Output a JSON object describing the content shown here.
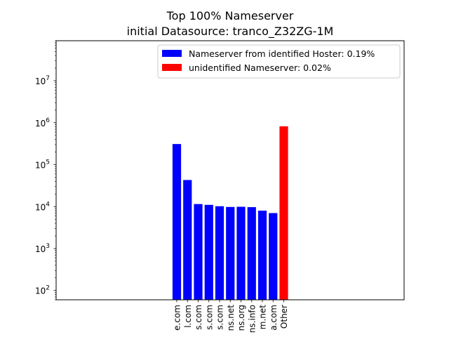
{
  "chart_data": {
    "type": "bar",
    "title": "Top 100% Nameserver",
    "subtitle": "initial Datasource: tranco_Z32ZG-1M",
    "xlabel": "",
    "ylabel": "",
    "yscale": "log",
    "ylim": [
      60,
      90000000
    ],
    "yticks": [
      {
        "value": 100,
        "label": "10",
        "exp": "2"
      },
      {
        "value": 1000,
        "label": "10",
        "exp": "3"
      },
      {
        "value": 10000,
        "label": "10",
        "exp": "4"
      },
      {
        "value": 100000,
        "label": "10",
        "exp": "5"
      },
      {
        "value": 1000000,
        "label": "10",
        "exp": "6"
      },
      {
        "value": 10000000,
        "label": "10",
        "exp": "7"
      }
    ],
    "categories": [
      "e.com",
      "l.com",
      "s.com",
      "s.com",
      "s.com",
      "ns.net",
      "ns.org",
      "ns.info",
      "m.net",
      "a.com",
      "Other"
    ],
    "values": [
      310000,
      43000,
      11500,
      11000,
      10200,
      9800,
      9900,
      9700,
      8000,
      7000,
      820000
    ],
    "bar_colors": [
      "#0000ff",
      "#0000ff",
      "#0000ff",
      "#0000ff",
      "#0000ff",
      "#0000ff",
      "#0000ff",
      "#0000ff",
      "#0000ff",
      "#0000ff",
      "#ff0000"
    ],
    "legend": {
      "placement": "top-right",
      "entries": [
        {
          "label": "Nameserver from identified Hoster: 0.19%",
          "color": "#0000ff"
        },
        {
          "label": "unidentified Nameserver: 0.02%",
          "color": "#ff0000"
        }
      ]
    },
    "grid": false
  }
}
